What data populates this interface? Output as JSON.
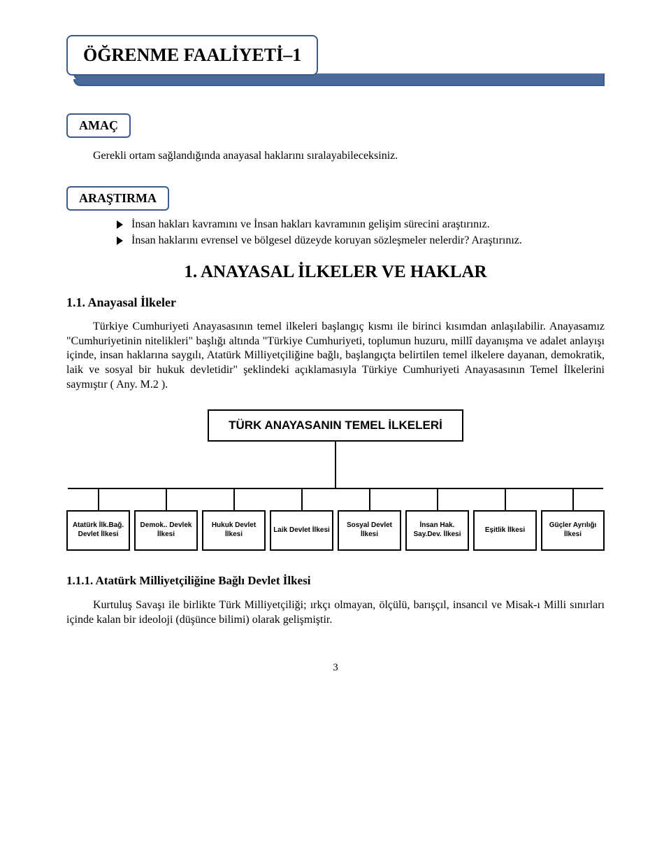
{
  "banner_title": "ÖĞRENME FAALİYETİ–1",
  "amac_label": "AMAÇ",
  "amac_text": "Gerekli ortam sağlandığında anayasal haklarını sıralayabileceksiniz.",
  "arastirma_label": "ARAŞTIRMA",
  "arastirma_bullets": [
    "İnsan hakları kavramını ve İnsan hakları kavramının gelişim sürecini araştırınız.",
    "İnsan haklarını evrensel ve bölgesel düzeyde koruyan sözleşmeler nelerdir? Araştırınız."
  ],
  "section_title": "1. ANAYASAL İLKELER VE HAKLAR",
  "subsection_title": "1.1. Anayasal İlkeler",
  "paragraph": "Türkiye Cumhuriyeti Anayasasının temel ilkeleri başlangıç kısmı ile birinci kısımdan anlaşılabilir. Anayasamız \"Cumhuriyetinin nitelikleri\" başlığı altında \"Türkiye Cumhuriyeti, toplumun huzuru, millî dayanışma ve adalet anlayışı içinde, insan haklarına saygılı, Atatürk Milliyetçiliğine bağlı, başlangıçta belirtilen temel ilkelere dayanan, demokratik, laik ve sosyal bir hukuk devletidir\" şeklindeki açıklamasıyla Türkiye Cumhuriyeti Anayasasının Temel İlkelerini saymıştır ( Any. M.2 ).",
  "diagram": {
    "title": "TÜRK ANAYASANIN TEMEL İLKELERİ",
    "nodes": [
      "Atatürk İlk.Bağ. Devlet İlkesi",
      "Demok.. Devlek İlkesi",
      "Hukuk Devlet İlkesi",
      "Laik Devlet İlkesi",
      "Sosyal Devlet İlkesi",
      "İnsan Hak. Say.Dev. İlkesi",
      "Eşitlik İlkesi",
      "Güçler Ayrılığı İlkesi"
    ],
    "border_color": "#000000",
    "font_family": "Arial",
    "node_fontsize": 10,
    "title_fontsize": 17
  },
  "subsub_title": "1.1.1. Atatürk Milliyetçiliğine Bağlı Devlet İlkesi",
  "subsub_paragraph": "Kurtuluş Savaşı ile birlikte Türk Milliyetçiliği; ırkçı olmayan, ölçülü, barışçıl, insancıl ve Misak-ı Milli sınırları içinde kalan bir ideoloji (düşünce bilimi) olarak gelişmiştir.",
  "page_number": "3",
  "colors": {
    "banner_border": "#3b5b8c",
    "banner_stripe": "#4a6a9a",
    "text": "#000000",
    "background": "#ffffff"
  }
}
